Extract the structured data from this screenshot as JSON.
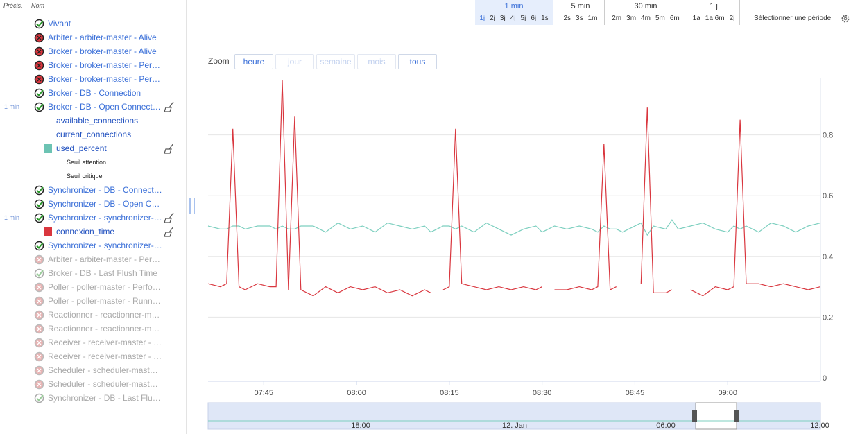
{
  "sidebar": {
    "header": {
      "precision": "Précis.",
      "name": "Nom"
    },
    "items": [
      {
        "label": "Vivant",
        "kind": "check",
        "status": "ok",
        "enabled": true
      },
      {
        "label": "Arbiter - arbiter-master - Alive",
        "kind": "check",
        "status": "error",
        "enabled": true
      },
      {
        "label": "Broker - broker-master - Alive",
        "kind": "check",
        "status": "error",
        "enabled": true
      },
      {
        "label": "Broker - broker-master - Per…",
        "kind": "check",
        "status": "error",
        "enabled": true
      },
      {
        "label": "Broker - broker-master - Per…",
        "kind": "check",
        "status": "error",
        "enabled": true
      },
      {
        "label": "Broker - DB - Connection",
        "kind": "check",
        "status": "ok",
        "enabled": true
      },
      {
        "label": "Broker - DB - Open Connect…",
        "kind": "check",
        "status": "ok",
        "enabled": true,
        "precision": "1 min",
        "broom": true
      },
      {
        "label": "available_connections",
        "kind": "metric"
      },
      {
        "label": "current_connections",
        "kind": "metric"
      },
      {
        "label": "used_percent",
        "kind": "metric",
        "color": "#6cc3b3",
        "broom": true
      },
      {
        "label": "Seuil attention",
        "kind": "threshold"
      },
      {
        "label": "Seuil critique",
        "kind": "threshold"
      },
      {
        "label": "Synchronizer - DB - Connect…",
        "kind": "check",
        "status": "ok",
        "enabled": true
      },
      {
        "label": "Synchronizer - DB - Open C…",
        "kind": "check",
        "status": "ok",
        "enabled": true
      },
      {
        "label": "Synchronizer - synchronizer-…",
        "kind": "check",
        "status": "ok",
        "enabled": true,
        "precision": "1 min",
        "broom": true
      },
      {
        "label": "connexion_time",
        "kind": "metric",
        "color": "#d9363e",
        "broom": true
      },
      {
        "label": "Synchronizer - synchronizer-…",
        "kind": "check",
        "status": "ok",
        "enabled": true
      },
      {
        "label": "Arbiter - arbiter-master - Per…",
        "kind": "check",
        "status": "error",
        "enabled": false
      },
      {
        "label": "Broker - DB - Last Flush Time",
        "kind": "check",
        "status": "ok",
        "enabled": false
      },
      {
        "label": "Poller - poller-master - Perfo…",
        "kind": "check",
        "status": "error",
        "enabled": false
      },
      {
        "label": "Poller - poller-master - Runn…",
        "kind": "check",
        "status": "error",
        "enabled": false
      },
      {
        "label": "Reactionner - reactionner-m…",
        "kind": "check",
        "status": "error",
        "enabled": false
      },
      {
        "label": "Reactionner - reactionner-m…",
        "kind": "check",
        "status": "error",
        "enabled": false
      },
      {
        "label": "Receiver - receiver-master - …",
        "kind": "check",
        "status": "error",
        "enabled": false
      },
      {
        "label": "Receiver - receiver-master - …",
        "kind": "check",
        "status": "error",
        "enabled": false
      },
      {
        "label": "Scheduler - scheduler-mast…",
        "kind": "check",
        "status": "error",
        "enabled": false
      },
      {
        "label": "Scheduler - scheduler-mast…",
        "kind": "check",
        "status": "error",
        "enabled": false
      },
      {
        "label": "Synchronizer - DB - Last Flu…",
        "kind": "check",
        "status": "ok",
        "enabled": false
      }
    ]
  },
  "toolbar": {
    "groups": [
      {
        "label": "1 min",
        "active": true,
        "ranges": [
          "1j",
          "2j",
          "3j",
          "4j",
          "5j",
          "6j",
          "1s"
        ]
      },
      {
        "label": "5 min",
        "ranges": [
          "2s",
          "3s",
          "1m"
        ]
      },
      {
        "label": "30 min",
        "ranges": [
          "2m",
          "3m",
          "4m",
          "5m",
          "6m"
        ]
      },
      {
        "label": "1 j",
        "ranges": [
          "1a",
          "1a 6m",
          "2j"
        ]
      }
    ],
    "select_period": "Sélectionner une période"
  },
  "zoom": {
    "label": "Zoom",
    "buttons": [
      {
        "label": "heure",
        "enabled": true
      },
      {
        "label": "jour",
        "enabled": false
      },
      {
        "label": "semaine",
        "enabled": false
      },
      {
        "label": "mois",
        "enabled": false
      },
      {
        "label": "tous",
        "enabled": true
      }
    ]
  },
  "chart_data": {
    "type": "line",
    "x": [
      "07:36",
      "07:38",
      "07:39",
      "07:40",
      "07:41",
      "07:42",
      "07:44",
      "07:46",
      "07:47",
      "07:48",
      "07:49",
      "07:50",
      "07:51",
      "07:53",
      "07:55",
      "07:57",
      "07:59",
      "08:01",
      "08:03",
      "08:05",
      "08:07",
      "08:09",
      "08:11",
      "08:12",
      "08:13",
      "08:14",
      "08:15",
      "08:16",
      "08:17",
      "08:19",
      "08:21",
      "08:23",
      "08:25",
      "08:27",
      "08:29",
      "08:30",
      "08:31",
      "08:32",
      "08:34",
      "08:36",
      "08:38",
      "08:39",
      "08:40",
      "08:41",
      "08:42",
      "08:43",
      "08:46",
      "08:47",
      "08:48",
      "08:50",
      "08:51",
      "08:52",
      "08:54",
      "08:56",
      "08:58",
      "09:00",
      "09:01",
      "09:02",
      "09:03",
      "09:05",
      "09:07",
      "09:09",
      "09:11",
      "09:13",
      "09:15"
    ],
    "series": [
      {
        "color": "#d9363e",
        "values": [
          0.31,
          0.3,
          0.31,
          0.82,
          0.3,
          0.29,
          0.31,
          0.3,
          0.3,
          0.98,
          0.29,
          0.86,
          0.29,
          0.27,
          0.3,
          0.28,
          0.3,
          0.29,
          0.3,
          0.28,
          0.29,
          0.27,
          0.29,
          0.28,
          null,
          0.29,
          0.3,
          0.82,
          0.31,
          0.3,
          0.29,
          0.3,
          0.29,
          0.3,
          0.29,
          0.3,
          null,
          0.29,
          0.29,
          0.3,
          0.29,
          0.3,
          0.77,
          0.29,
          0.3,
          null,
          0.31,
          0.89,
          0.28,
          0.28,
          0.29,
          null,
          0.29,
          0.27,
          0.3,
          0.29,
          0.3,
          0.85,
          0.31,
          0.31,
          0.3,
          0.31,
          0.3,
          0.29,
          0.3
        ]
      },
      {
        "color": "#7ccfbf",
        "values": [
          0.5,
          0.49,
          0.49,
          0.5,
          0.5,
          0.49,
          0.5,
          0.5,
          0.49,
          0.5,
          0.49,
          0.49,
          0.5,
          0.5,
          0.48,
          0.51,
          0.49,
          0.5,
          0.48,
          0.51,
          0.5,
          0.49,
          0.5,
          0.48,
          0.49,
          0.5,
          0.5,
          0.49,
          0.5,
          0.48,
          0.51,
          0.49,
          0.47,
          0.49,
          0.5,
          0.48,
          0.49,
          0.5,
          0.49,
          0.5,
          0.49,
          0.48,
          0.5,
          0.49,
          0.49,
          0.48,
          0.51,
          0.47,
          0.5,
          0.49,
          0.52,
          0.49,
          0.5,
          0.51,
          0.49,
          0.48,
          0.5,
          0.49,
          0.5,
          0.48,
          0.51,
          0.5,
          0.48,
          0.5,
          0.51
        ]
      }
    ],
    "xlim": [
      "07:36",
      "09:15"
    ],
    "xticks": [
      "07:45",
      "08:00",
      "08:15",
      "08:30",
      "08:45",
      "09:00"
    ],
    "ylim": [
      0,
      1
    ],
    "yticks": [
      0,
      0.2,
      0.4,
      0.6,
      0.8
    ],
    "grid": true,
    "navigator": {
      "labels": [
        "18:00",
        "12. Jan",
        "06:00",
        "12:00"
      ]
    }
  }
}
